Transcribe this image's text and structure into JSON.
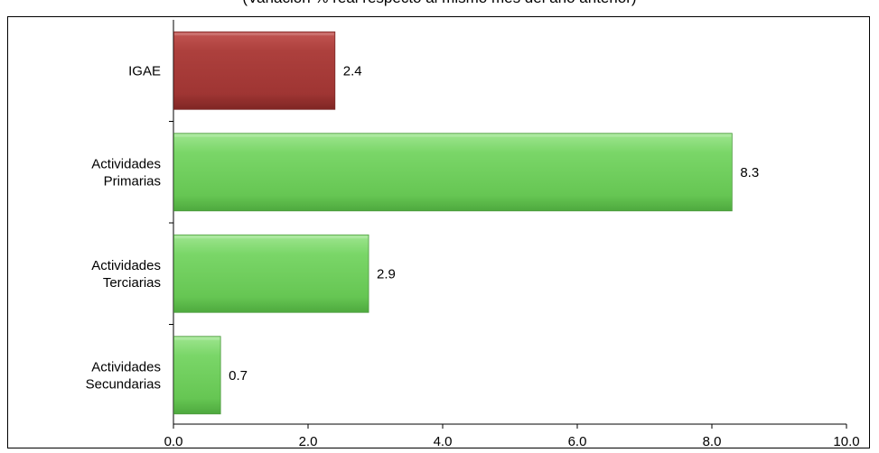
{
  "chart_data": {
    "type": "bar",
    "orientation": "horizontal",
    "subtitle": "(Variación % real respecto al mismo mes del año anterior)",
    "categories": [
      [
        "IGAE"
      ],
      [
        "Actividades",
        "Primarias"
      ],
      [
        "Actividades",
        "Terciarias"
      ],
      [
        "Actividades",
        "Secundarias"
      ]
    ],
    "values": [
      2.4,
      8.3,
      2.9,
      0.7
    ],
    "value_labels": [
      "2.4",
      "8.3",
      "2.9",
      "0.7"
    ],
    "colors": [
      "#a33a38",
      "#6cc95a",
      "#6cc95a",
      "#6cc95a"
    ],
    "xlim": [
      0,
      10
    ],
    "x_ticks": [
      0,
      2,
      4,
      6,
      8,
      10
    ],
    "x_tick_labels": [
      "0.0",
      "2.0",
      "4.0",
      "6.0",
      "8.0",
      "10.0"
    ],
    "grid": false,
    "legend": "none"
  }
}
